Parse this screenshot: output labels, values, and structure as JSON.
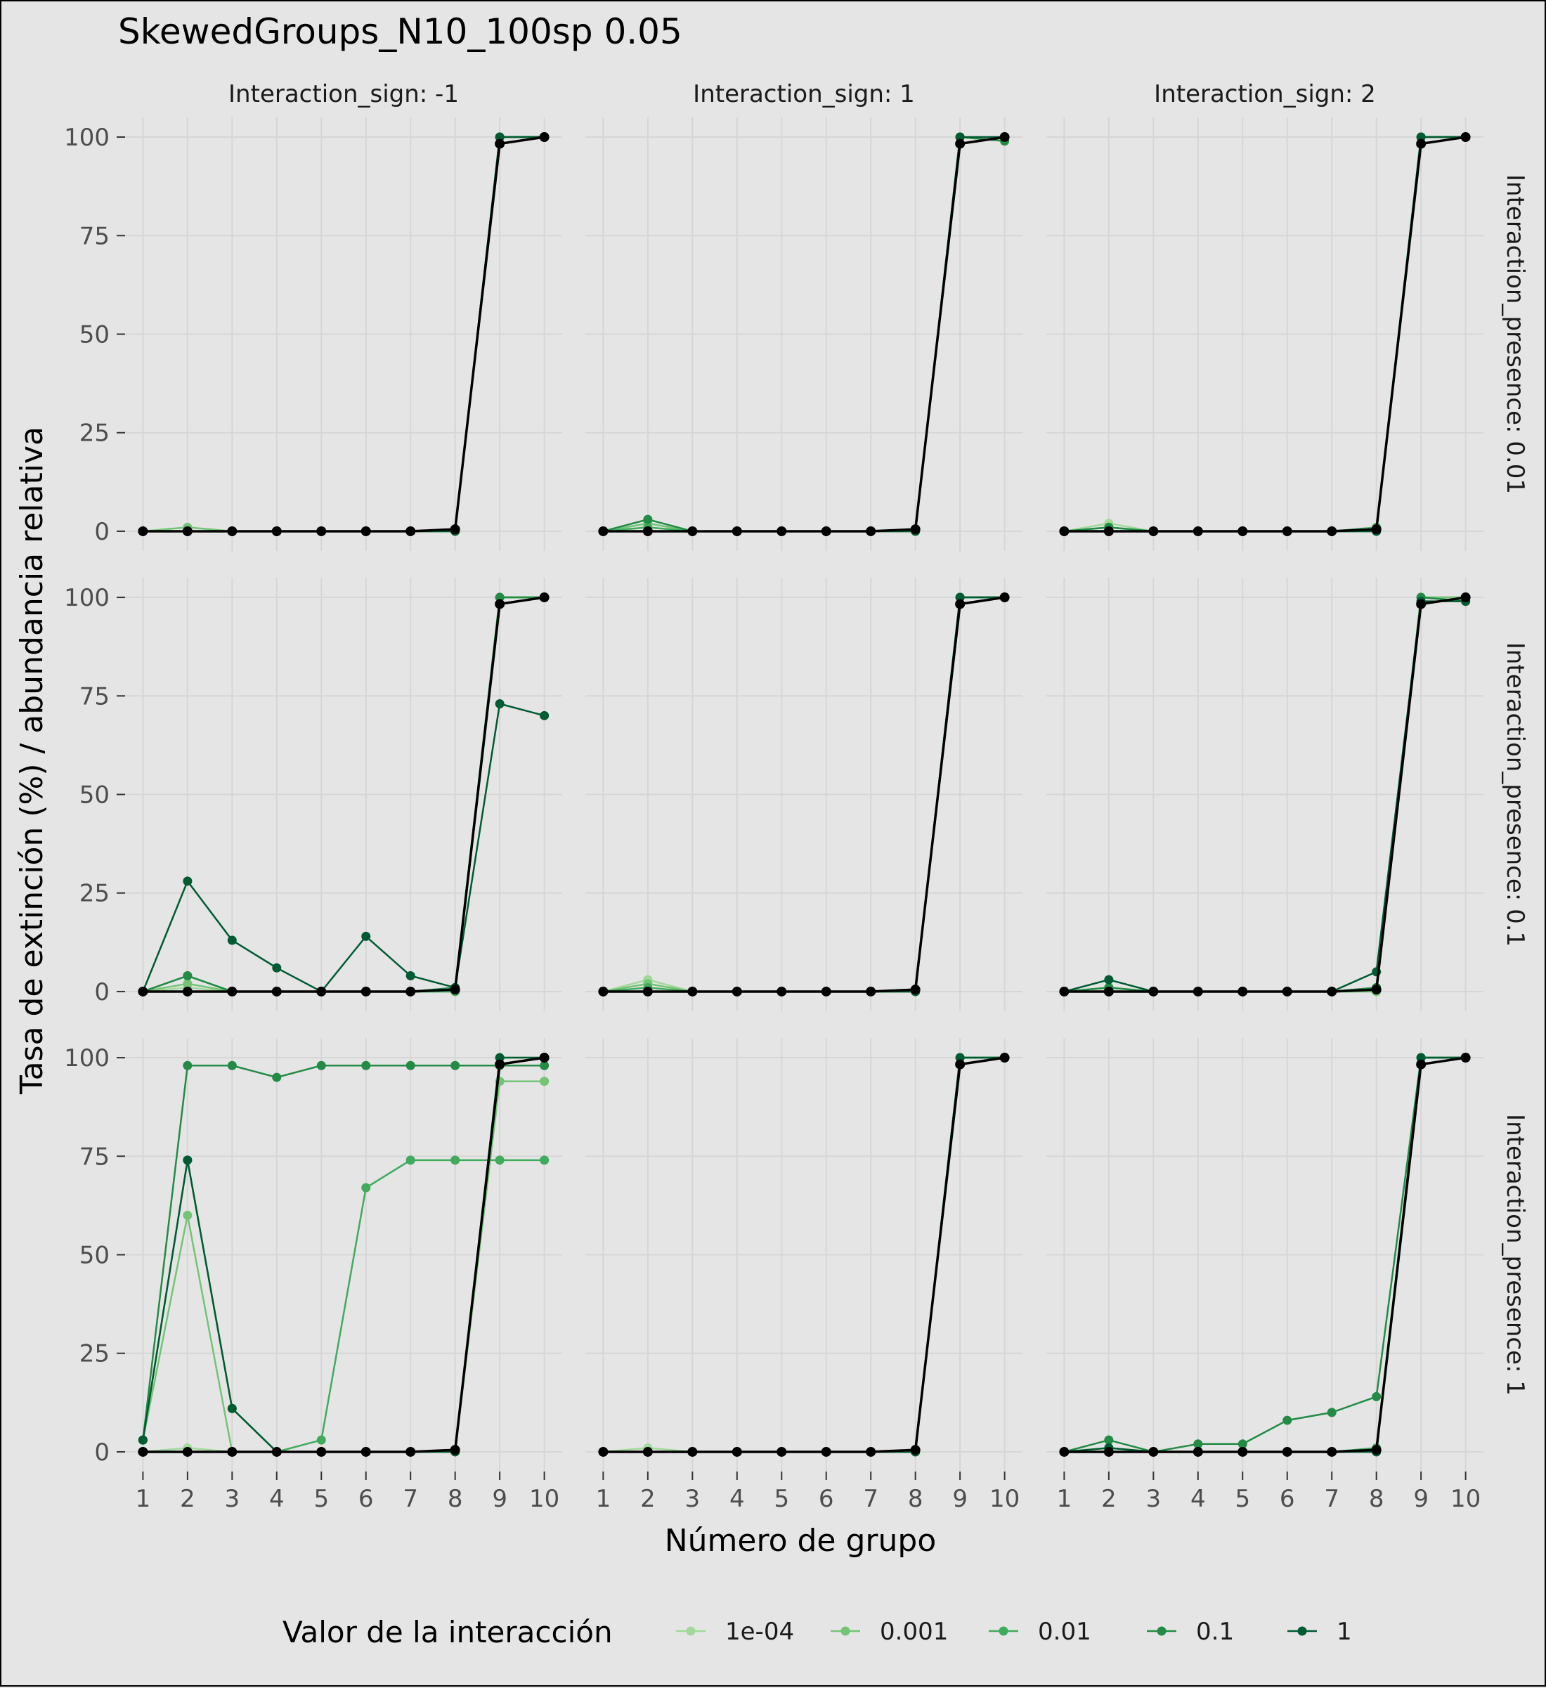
{
  "chart_data": {
    "type": "line",
    "title": "SkewedGroups_N10_100sp 0.05",
    "xlabel": "Número de grupo",
    "ylabel": "Tasa de extinción (%) / abundancia relativa",
    "x": [
      1,
      2,
      3,
      4,
      5,
      6,
      7,
      8,
      9,
      10
    ],
    "x_ticks": [
      "1",
      "2",
      "3",
      "4",
      "5",
      "6",
      "7",
      "8",
      "9",
      "10"
    ],
    "y_ticks": [
      "0",
      "25",
      "50",
      "75",
      "100"
    ],
    "ylim": [
      -5,
      105
    ],
    "xlim": [
      0.6,
      10.4
    ],
    "grid": true,
    "legend": {
      "title": "Valor de la interacción",
      "position": "bottom",
      "entries": [
        "1e-04",
        "0.001",
        "0.01",
        "0.1",
        "1"
      ]
    },
    "series_colors": [
      "#a1d99b",
      "#74c476",
      "#41ab5d",
      "#238b45",
      "#005a32"
    ],
    "abundance_color": "#000000",
    "col_facets": [
      "Interaction_sign: -1",
      "Interaction_sign: 1",
      "Interaction_sign: 2"
    ],
    "row_facets": [
      "Interaction_presence: 0.01",
      "Interaction_presence: 0.1",
      "Interaction_presence: 1"
    ],
    "panels": [
      {
        "row": 0,
        "col": 0,
        "series": [
          {
            "name": "1e-04",
            "values": [
              0,
              1,
              0,
              0,
              0,
              0,
              0,
              0,
              100,
              100
            ]
          },
          {
            "name": "0.001",
            "values": [
              0,
              1,
              0,
              0,
              0,
              0,
              0,
              0,
              100,
              100
            ]
          },
          {
            "name": "0.01",
            "values": [
              0,
              0,
              0,
              0,
              0,
              0,
              0,
              0,
              100,
              100
            ]
          },
          {
            "name": "0.1",
            "values": [
              0,
              0,
              0,
              0,
              0,
              0,
              0,
              0,
              100,
              100
            ]
          },
          {
            "name": "1",
            "values": [
              0,
              0,
              0,
              0,
              0,
              0,
              0,
              0,
              100,
              100
            ]
          }
        ],
        "abundance": [
          0,
          0,
          0,
          0,
          0,
          0,
          0,
          0.5,
          98.3,
          100
        ]
      },
      {
        "row": 0,
        "col": 1,
        "series": [
          {
            "name": "1e-04",
            "values": [
              0,
              1,
              0,
              0,
              0,
              0,
              0,
              0,
              100,
              99
            ]
          },
          {
            "name": "0.001",
            "values": [
              0,
              2,
              0,
              0,
              0,
              0,
              0,
              0,
              100,
              99
            ]
          },
          {
            "name": "0.01",
            "values": [
              0,
              1,
              0,
              0,
              0,
              0,
              0,
              0,
              100,
              99
            ]
          },
          {
            "name": "0.1",
            "values": [
              0,
              3,
              0,
              0,
              0,
              0,
              0,
              0,
              100,
              99
            ]
          },
          {
            "name": "1",
            "values": [
              0,
              0,
              0,
              0,
              0,
              0,
              0,
              0,
              100,
              100
            ]
          }
        ],
        "abundance": [
          0,
          0,
          0,
          0,
          0,
          0,
          0,
          0.5,
          98.3,
          100
        ]
      },
      {
        "row": 0,
        "col": 2,
        "series": [
          {
            "name": "1e-04",
            "values": [
              0,
              2,
              0,
              0,
              0,
              0,
              0,
              0,
              100,
              100
            ]
          },
          {
            "name": "0.001",
            "values": [
              0,
              1,
              0,
              0,
              0,
              0,
              0,
              0,
              100,
              100
            ]
          },
          {
            "name": "0.01",
            "values": [
              0,
              1,
              0,
              0,
              0,
              0,
              0,
              1,
              100,
              100
            ]
          },
          {
            "name": "0.1",
            "values": [
              0,
              1,
              0,
              0,
              0,
              0,
              0,
              0,
              100,
              100
            ]
          },
          {
            "name": "1",
            "values": [
              0,
              0,
              0,
              0,
              0,
              0,
              0,
              0,
              100,
              100
            ]
          }
        ],
        "abundance": [
          0,
          0,
          0,
          0,
          0,
          0,
          0,
          0.5,
          98.3,
          100
        ]
      },
      {
        "row": 1,
        "col": 0,
        "series": [
          {
            "name": "1e-04",
            "values": [
              0,
              1,
              0,
              0,
              0,
              0,
              0,
              0,
              100,
              100
            ]
          },
          {
            "name": "0.001",
            "values": [
              0,
              2,
              0,
              0,
              0,
              0,
              0,
              0,
              100,
              100
            ]
          },
          {
            "name": "0.01",
            "values": [
              0,
              4,
              0,
              0,
              0,
              0,
              0,
              0,
              100,
              100
            ]
          },
          {
            "name": "0.1",
            "values": [
              0,
              4,
              0,
              0,
              0,
              0,
              0,
              1,
              100,
              100
            ]
          },
          {
            "name": "1",
            "values": [
              0,
              28,
              13,
              6,
              0,
              14,
              4,
              1,
              73,
              70
            ]
          }
        ],
        "abundance": [
          0,
          0,
          0,
          0,
          0,
          0,
          0,
          0.5,
          98.3,
          100
        ]
      },
      {
        "row": 1,
        "col": 1,
        "series": [
          {
            "name": "1e-04",
            "values": [
              0,
              3,
              0,
              0,
              0,
              0,
              0,
              0,
              100,
              100
            ]
          },
          {
            "name": "0.001",
            "values": [
              0,
              2,
              0,
              0,
              0,
              0,
              0,
              0,
              100,
              100
            ]
          },
          {
            "name": "0.01",
            "values": [
              0,
              1,
              0,
              0,
              0,
              0,
              0,
              0,
              100,
              100
            ]
          },
          {
            "name": "0.1",
            "values": [
              0,
              0,
              0,
              0,
              0,
              0,
              0,
              0,
              100,
              100
            ]
          },
          {
            "name": "1",
            "values": [
              0,
              0,
              0,
              0,
              0,
              0,
              0,
              0,
              100,
              100
            ]
          }
        ],
        "abundance": [
          0,
          0,
          0,
          0,
          0,
          0,
          0,
          0.5,
          98.3,
          100
        ]
      },
      {
        "row": 1,
        "col": 2,
        "series": [
          {
            "name": "1e-04",
            "values": [
              0,
              1,
              0,
              0,
              0,
              0,
              0,
              0,
              100,
              100
            ]
          },
          {
            "name": "0.001",
            "values": [
              0,
              1,
              0,
              0,
              0,
              0,
              0,
              0,
              100,
              100
            ]
          },
          {
            "name": "0.01",
            "values": [
              0,
              1,
              0,
              0,
              0,
              0,
              0,
              1,
              100,
              99
            ]
          },
          {
            "name": "0.1",
            "values": [
              0,
              1,
              0,
              0,
              0,
              0,
              0,
              1,
              100,
              99
            ]
          },
          {
            "name": "1",
            "values": [
              0,
              3,
              0,
              0,
              0,
              0,
              0,
              5,
              99,
              99
            ]
          }
        ],
        "abundance": [
          0,
          0,
          0,
          0,
          0,
          0,
          0,
          0.5,
          98.3,
          100
        ]
      },
      {
        "row": 2,
        "col": 0,
        "series": [
          {
            "name": "1e-04",
            "values": [
              0,
              1,
              0,
              0,
              0,
              0,
              0,
              0,
              100,
              100
            ]
          },
          {
            "name": "0.001",
            "values": [
              3,
              60,
              0,
              0,
              0,
              0,
              0,
              0,
              94,
              94
            ]
          },
          {
            "name": "0.01",
            "values": [
              3,
              74,
              11,
              0,
              3,
              67,
              74,
              74,
              74,
              74
            ]
          },
          {
            "name": "0.1",
            "values": [
              3,
              98,
              98,
              95,
              98,
              98,
              98,
              98,
              98,
              98
            ]
          },
          {
            "name": "1",
            "values": [
              3,
              74,
              11,
              0,
              0,
              0,
              0,
              0,
              100,
              100
            ]
          }
        ],
        "abundance": [
          0,
          0,
          0,
          0,
          0,
          0,
          0,
          0.5,
          98.3,
          100
        ]
      },
      {
        "row": 2,
        "col": 1,
        "series": [
          {
            "name": "1e-04",
            "values": [
              0,
              1,
              0,
              0,
              0,
              0,
              0,
              0,
              100,
              100
            ]
          },
          {
            "name": "0.001",
            "values": [
              0,
              0,
              0,
              0,
              0,
              0,
              0,
              0,
              100,
              100
            ]
          },
          {
            "name": "0.01",
            "values": [
              0,
              0,
              0,
              0,
              0,
              0,
              0,
              0,
              100,
              100
            ]
          },
          {
            "name": "0.1",
            "values": [
              0,
              0,
              0,
              0,
              0,
              0,
              0,
              0,
              100,
              100
            ]
          },
          {
            "name": "1",
            "values": [
              0,
              0,
              0,
              0,
              0,
              0,
              0,
              0,
              100,
              100
            ]
          }
        ],
        "abundance": [
          0,
          0,
          0,
          0,
          0,
          0,
          0,
          0.5,
          98.3,
          100
        ]
      },
      {
        "row": 2,
        "col": 2,
        "series": [
          {
            "name": "1e-04",
            "values": [
              0,
              1,
              0,
              0,
              0,
              0,
              0,
              1,
              100,
              100
            ]
          },
          {
            "name": "0.001",
            "values": [
              0,
              0,
              0,
              0,
              0,
              0,
              0,
              0,
              100,
              100
            ]
          },
          {
            "name": "0.01",
            "values": [
              0,
              1,
              0,
              0,
              0,
              0,
              0,
              1,
              100,
              100
            ]
          },
          {
            "name": "0.1",
            "values": [
              0,
              3,
              0,
              2,
              2,
              8,
              10,
              14,
              100,
              100
            ]
          },
          {
            "name": "1",
            "values": [
              0,
              1,
              0,
              0,
              0,
              0,
              0,
              0,
              100,
              100
            ]
          }
        ],
        "abundance": [
          0,
          0,
          0,
          0,
          0,
          0,
          0,
          0.5,
          98.3,
          100
        ]
      }
    ]
  }
}
